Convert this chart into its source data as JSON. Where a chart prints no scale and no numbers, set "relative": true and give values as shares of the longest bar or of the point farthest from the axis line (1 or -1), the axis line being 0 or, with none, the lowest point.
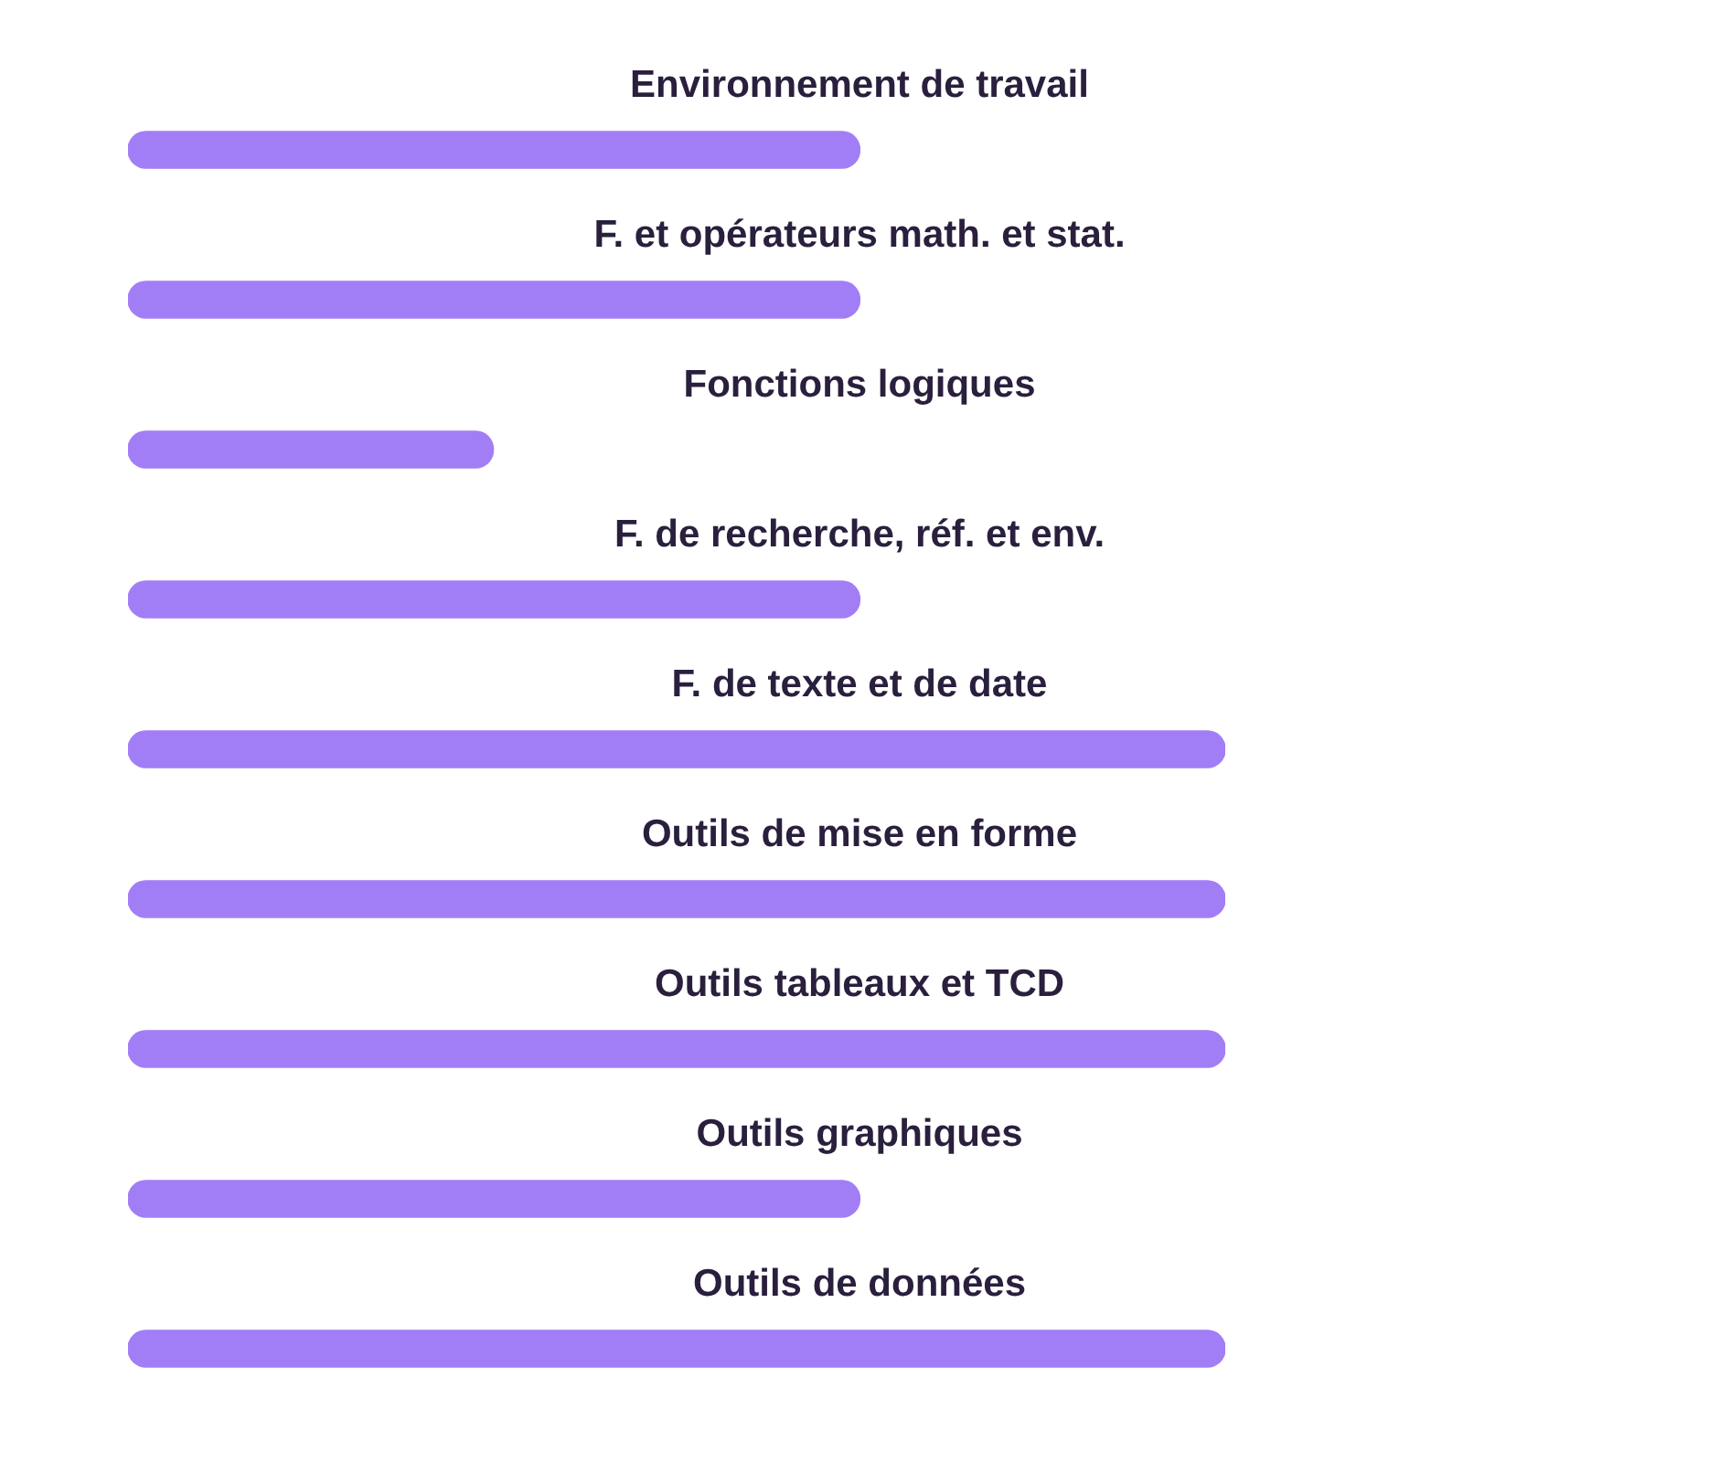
{
  "chart_data": {
    "type": "bar",
    "orientation": "horizontal",
    "relative": true,
    "categories": [
      "Environnement de travail",
      "F. et opérateurs math. et stat.",
      "Fonctions logiques",
      "F. de recherche, réf. et env.",
      "F. de texte et de date",
      "Outils de mise en forme",
      "Outils tableaux et TCD",
      "Outils graphiques",
      "Outils de données"
    ],
    "values": [
      0.667,
      0.667,
      0.333,
      0.667,
      1,
      1,
      1,
      0.667,
      1
    ],
    "color": "#a27ef6"
  }
}
